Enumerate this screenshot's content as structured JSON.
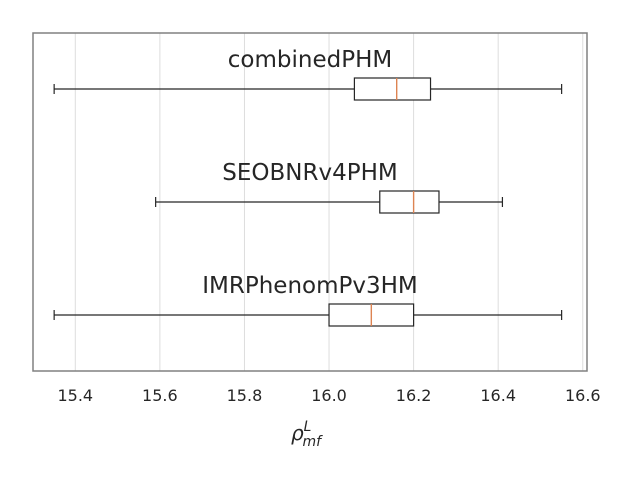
{
  "chart_data": {
    "type": "boxplot",
    "orientation": "horizontal",
    "xlabel": {
      "base": "ρ",
      "sup": "L",
      "sub": "mf"
    },
    "xlim": [
      15.3,
      16.61
    ],
    "xticks": [
      15.4,
      15.6,
      15.8,
      16.0,
      16.2,
      16.4,
      16.6
    ],
    "xtick_labels": [
      "15.4",
      "15.6",
      "15.8",
      "16.0",
      "16.2",
      "16.4",
      "16.6"
    ],
    "grid": {
      "x": true,
      "y": false
    },
    "colors": {
      "median": "#dd8452",
      "box": "#262626",
      "grid": "#dddddd",
      "frame": "#808080",
      "text": "#262626"
    },
    "series": [
      {
        "name": "combinedPHM",
        "whisker_low": 15.35,
        "q1": 16.06,
        "median": 16.16,
        "q3": 16.24,
        "whisker_high": 16.55
      },
      {
        "name": "SEOBNRv4PHM",
        "whisker_low": 15.59,
        "q1": 16.12,
        "median": 16.2,
        "q3": 16.26,
        "whisker_high": 16.41
      },
      {
        "name": "IMRPhenomPv3HM",
        "whisker_low": 15.35,
        "q1": 16.0,
        "median": 16.1,
        "q3": 16.2,
        "whisker_high": 16.55
      }
    ]
  }
}
